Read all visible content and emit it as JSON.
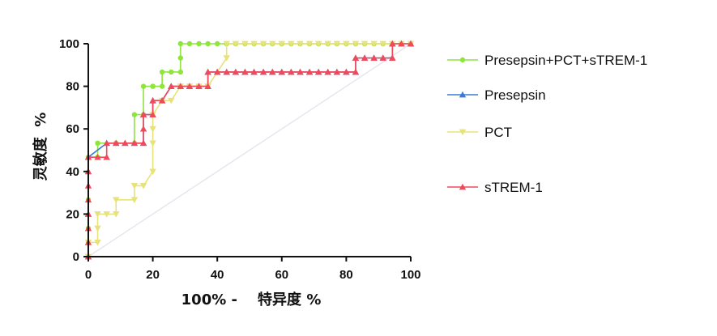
{
  "chart_data": {
    "type": "line",
    "title": "",
    "xlabel": "100% -    特异度 %",
    "ylabel": "灵敏度  %",
    "xlim": [
      0,
      100
    ],
    "ylim": [
      0,
      100
    ],
    "xticks": [
      "0",
      "20",
      "40",
      "60",
      "80",
      "100"
    ],
    "yticks": [
      "0",
      "20",
      "40",
      "60",
      "80",
      "100"
    ],
    "grid": false,
    "legend_position": "right",
    "reference_line": {
      "x": [
        0,
        100
      ],
      "y": [
        0,
        100
      ],
      "color": "#e6e6ee"
    },
    "series": [
      {
        "name": "Presepsin+PCT+sTREM-1",
        "color": "#8ee63c",
        "marker": "circle",
        "x": [
          0,
          0,
          0,
          0,
          0,
          2.9,
          2.9,
          8.6,
          8.6,
          14.3,
          14.3,
          17.1,
          17.1,
          20,
          20,
          22.9,
          22.9,
          25.7,
          28.6,
          28.6,
          28.6,
          31.4,
          34.3,
          37.1,
          40,
          42.9,
          45.7,
          48.6,
          51.4,
          54.3,
          57.1,
          60,
          62.9,
          65.7,
          68.6,
          71.4,
          74.3,
          77.1,
          80,
          82.9,
          85.7,
          88.6,
          91.4,
          94.3,
          97.1,
          100
        ],
        "y": [
          0,
          6.7,
          13.3,
          26.7,
          46.7,
          46.7,
          53.3,
          53.3,
          53.3,
          53.3,
          66.7,
          66.7,
          80,
          80,
          80,
          80,
          86.7,
          86.7,
          86.7,
          93.3,
          100,
          100,
          100,
          100,
          100,
          100,
          100,
          100,
          100,
          100,
          100,
          100,
          100,
          100,
          100,
          100,
          100,
          100,
          100,
          100,
          100,
          100,
          100,
          100,
          100,
          100
        ]
      },
      {
        "name": "Presepsin",
        "color": "#3a7bd5",
        "marker": "triangle",
        "x": [
          0,
          0,
          0,
          0,
          5.7,
          8.6,
          11.4,
          14.3,
          17.1,
          17.1,
          20,
          20,
          22.9,
          25.7,
          28.6,
          31.4,
          34.3,
          37.1,
          37.1,
          40,
          42.9,
          45.7,
          48.6,
          51.4,
          54.3,
          57.1,
          60,
          62.9,
          65.7,
          68.6,
          71.4,
          74.3,
          77.1,
          80,
          82.9,
          82.9,
          85.7,
          88.6,
          91.4,
          94.3,
          94.3,
          97.1,
          100
        ],
        "y": [
          0,
          20,
          40,
          46.7,
          53.3,
          53.3,
          53.3,
          53.3,
          53.3,
          66.7,
          66.7,
          73.3,
          73.3,
          80,
          80,
          80,
          80,
          80,
          86.7,
          86.7,
          86.7,
          86.7,
          86.7,
          86.7,
          86.7,
          86.7,
          86.7,
          86.7,
          86.7,
          86.7,
          86.7,
          86.7,
          86.7,
          86.7,
          86.7,
          93.3,
          93.3,
          93.3,
          93.3,
          93.3,
          100,
          100,
          100
        ]
      },
      {
        "name": "PCT",
        "color": "#e8e27a",
        "marker": "triangle-down",
        "x": [
          0,
          0,
          2.9,
          2.9,
          2.9,
          5.7,
          8.6,
          8.6,
          14.3,
          14.3,
          17.1,
          20,
          20,
          20,
          20,
          22.9,
          25.7,
          28.6,
          31.4,
          34.3,
          37.1,
          37.1,
          42.9,
          42.9,
          45.7,
          48.6,
          51.4,
          54.3,
          57.1,
          60,
          62.9,
          65.7,
          68.6,
          71.4,
          74.3,
          77.1,
          80,
          82.9,
          85.7,
          88.6,
          91.4,
          94.3,
          97.1,
          100
        ],
        "y": [
          0,
          6.7,
          6.7,
          13.3,
          20,
          20,
          20,
          26.7,
          26.7,
          33.3,
          33.3,
          40,
          53.3,
          60,
          66.7,
          73.3,
          73.3,
          80,
          80,
          80,
          80,
          80,
          93.3,
          100,
          100,
          100,
          100,
          100,
          100,
          100,
          100,
          100,
          100,
          100,
          100,
          100,
          100,
          100,
          100,
          100,
          100,
          100,
          100,
          100
        ]
      },
      {
        "name": "sTREM-1",
        "color": "#f04a5a",
        "marker": "triangle",
        "x": [
          0,
          0,
          0,
          0,
          0,
          0,
          0,
          0,
          2.9,
          5.7,
          5.7,
          8.6,
          11.4,
          14.3,
          17.1,
          17.1,
          17.1,
          20,
          20,
          22.9,
          25.7,
          28.6,
          31.4,
          34.3,
          37.1,
          37.1,
          40,
          42.9,
          45.7,
          48.6,
          51.4,
          54.3,
          57.1,
          60,
          62.9,
          65.7,
          68.6,
          71.4,
          74.3,
          77.1,
          80,
          82.9,
          82.9,
          85.7,
          88.6,
          91.4,
          94.3,
          94.3,
          97.1,
          100
        ],
        "y": [
          0,
          6.7,
          13.3,
          20,
          26.7,
          33.3,
          40,
          46.7,
          46.7,
          46.7,
          53.3,
          53.3,
          53.3,
          53.3,
          53.3,
          60,
          66.7,
          66.7,
          73.3,
          73.3,
          80,
          80,
          80,
          80,
          80,
          86.7,
          86.7,
          86.7,
          86.7,
          86.7,
          86.7,
          86.7,
          86.7,
          86.7,
          86.7,
          86.7,
          86.7,
          86.7,
          86.7,
          86.7,
          86.7,
          86.7,
          93.3,
          93.3,
          93.3,
          93.3,
          93.3,
          100,
          100,
          100
        ]
      }
    ]
  }
}
